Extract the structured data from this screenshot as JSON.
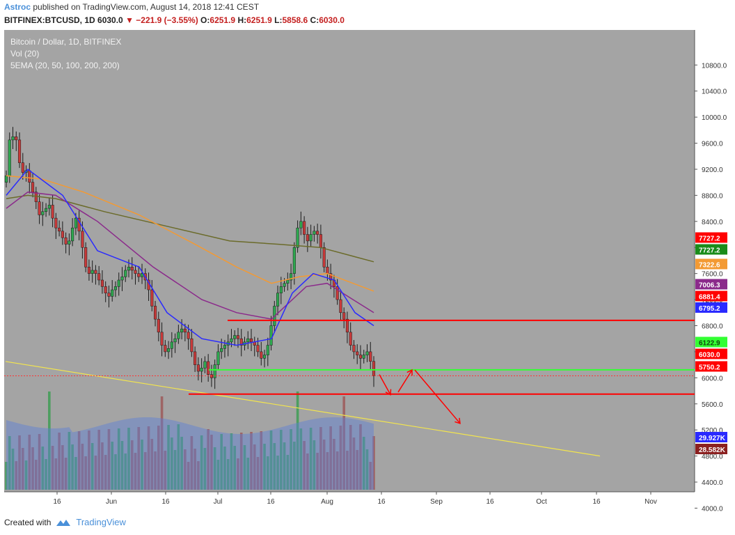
{
  "header": {
    "author": "Astroc",
    "published": "published on TradingView.com, August 14, 2018 12:41 CEST",
    "symbol": "BITFINEX:BTCUSD, 1D",
    "last": "6030.0",
    "change": "−221.9 (−3.55%)",
    "o_label": "O:",
    "o": "6251.9",
    "h_label": "H:",
    "h": "6251.9",
    "l_label": "L:",
    "l": "5858.6",
    "c_label": "C:",
    "c": "6030.0"
  },
  "legend": {
    "title": "Bitcoin / Dollar, 1D, BITFINEX",
    "vol": "Vol (20)",
    "ema": "5EMA (20, 50, 100, 200, 200)"
  },
  "footer": {
    "created": "Created with",
    "brand": "TradingView"
  },
  "colors": {
    "background": "#a4a4a4",
    "up": "#2ea84f",
    "down": "#c83a3a",
    "ema20": "#2a2aff",
    "ema50": "#8b2a8b",
    "ema100": "#f39a33",
    "ema200": "#6b6b2a",
    "trend": "#f3e54d",
    "hline": "#ff0000",
    "green_level": "#33ff33"
  },
  "chart_data": {
    "type": "candlestick",
    "y_axis_ticks": [
      "10800.0",
      "10400.0",
      "10000.0",
      "9600.0",
      "9200.0",
      "8800.0",
      "8400.0",
      "8000.0",
      "7600.0",
      "7200.0",
      "6800.0",
      "6400.0",
      "6000.0",
      "5600.0",
      "5200.0",
      "4800.0",
      "4400.0",
      "4000.0"
    ],
    "ylim": [
      3800,
      11000
    ],
    "x_axis_ticks": [
      "16",
      "Jun",
      "16",
      "Jul",
      "16",
      "Aug",
      "16",
      "Sep",
      "16",
      "Oct",
      "16",
      "Nov"
    ],
    "price_labels": [
      {
        "value": "7727.2",
        "color": "#ff0000"
      },
      {
        "value": "7727.2",
        "color": "#1a8c1a"
      },
      {
        "value": "7322.6",
        "color": "#f39a33"
      },
      {
        "value": "7006.3",
        "color": "#8b2a8b"
      },
      {
        "value": "6881.4",
        "color": "#ff0000"
      },
      {
        "value": "6795.2",
        "color": "#2a2aff"
      },
      {
        "value": "6122.9",
        "color": "#33ff33"
      },
      {
        "value": "6030.0",
        "color": "#ff0000"
      },
      {
        "value": "5750.2",
        "color": "#ff0000"
      },
      {
        "value": "29.927K",
        "color": "#2a2aff"
      },
      {
        "value": "28.582K",
        "color": "#8b2020"
      }
    ],
    "horizontal_levels": [
      {
        "value": 6881.4,
        "color": "#ff0000"
      },
      {
        "value": 6122.9,
        "color": "#33ff33"
      },
      {
        "value": 5750.2,
        "color": "#ff0000"
      }
    ],
    "close_series": [
      9100,
      9650,
      9700,
      9650,
      9300,
      9150,
      9180,
      9000,
      8850,
      8700,
      8500,
      8550,
      8600,
      8650,
      8450,
      8300,
      8250,
      8150,
      8050,
      8100,
      8300,
      8450,
      8250,
      8000,
      7700,
      7600,
      7650,
      7600,
      7500,
      7400,
      7300,
      7250,
      7350,
      7400,
      7500,
      7550,
      7650,
      7700,
      7650,
      7600,
      7550,
      7600,
      7500,
      7350,
      7100,
      6900,
      6700,
      6500,
      6400,
      6450,
      6550,
      6600,
      6700,
      6750,
      6700,
      6600,
      6400,
      6200,
      6100,
      6150,
      6250,
      6050,
      6000,
      6200,
      6400,
      6450,
      6500,
      6550,
      6600,
      6650,
      6600,
      6500,
      6550,
      6600,
      6550,
      6500,
      6400,
      6300,
      6350,
      6500,
      6800,
      7100,
      7300,
      7400,
      7450,
      7500,
      7600,
      8000,
      8300,
      8400,
      8200,
      8100,
      8200,
      8250,
      8200,
      8000,
      7700,
      7600,
      7500,
      7400,
      7200,
      7000,
      6900,
      6700,
      6500,
      6400,
      6350,
      6300,
      6350,
      6400,
      6251.9,
      6030
    ]
  }
}
